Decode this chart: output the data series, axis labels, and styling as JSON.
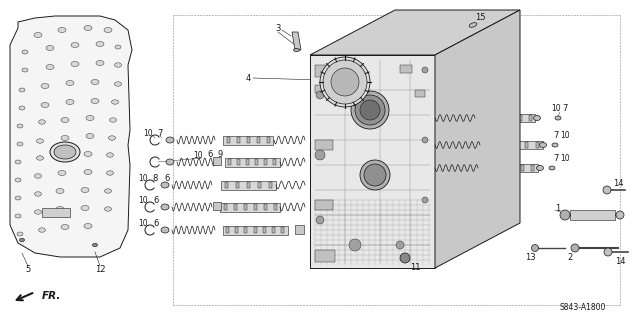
{
  "background_color": "#ffffff",
  "diagram_code": "S843-A1800",
  "line_color": "#1a1a1a",
  "label_fontsize": 6,
  "fig_width": 6.4,
  "fig_height": 3.2,
  "dpi": 100,
  "gray": "#888888",
  "darkgray": "#444444"
}
